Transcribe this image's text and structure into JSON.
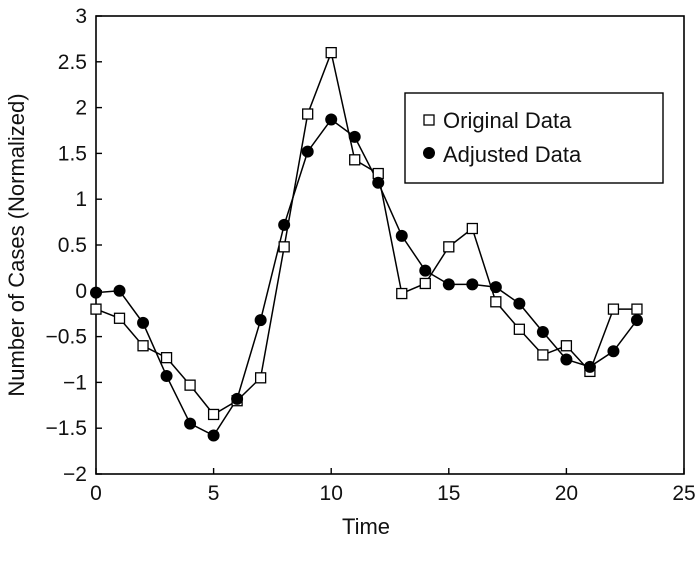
{
  "chart_data": {
    "type": "line",
    "xlabel": "Time",
    "ylabel": "Number of Cases (Normalized)",
    "xlim": [
      0,
      25
    ],
    "ylim": [
      -2,
      3
    ],
    "xticks": [
      0,
      5,
      10,
      15,
      20,
      25
    ],
    "yticks": [
      -2,
      -1.5,
      -1,
      -0.5,
      0,
      0.5,
      1,
      1.5,
      2,
      2.5,
      3
    ],
    "xtick_labels": [
      "0",
      "5",
      "10",
      "15",
      "20",
      "25"
    ],
    "ytick_labels": [
      "−2",
      "−1.5",
      "−1",
      "−0.5",
      "0",
      "0.5",
      "1",
      "1.5",
      "2",
      "2.5",
      "3"
    ],
    "grid": false,
    "legend_position": "top-right",
    "series": [
      {
        "name": "Original Data",
        "marker": "open-square",
        "color": "#000000",
        "x": [
          0,
          1,
          2,
          3,
          4,
          5,
          6,
          7,
          8,
          9,
          10,
          11,
          12,
          13,
          14,
          15,
          16,
          17,
          18,
          19,
          20,
          21,
          22,
          23
        ],
        "y": [
          -0.2,
          -0.3,
          -0.6,
          -0.73,
          -1.03,
          -1.35,
          -1.2,
          -0.95,
          0.48,
          1.93,
          2.6,
          1.43,
          1.28,
          -0.03,
          0.08,
          0.48,
          0.68,
          -0.12,
          -0.42,
          -0.7,
          -0.6,
          -0.88,
          -0.2,
          -0.2
        ]
      },
      {
        "name": "Adjusted Data",
        "marker": "filled-circle",
        "color": "#000000",
        "x": [
          0,
          1,
          2,
          3,
          4,
          5,
          6,
          7,
          8,
          9,
          10,
          11,
          12,
          13,
          14,
          15,
          16,
          17,
          18,
          19,
          20,
          21,
          22,
          23
        ],
        "y": [
          -0.02,
          0.0,
          -0.35,
          -0.93,
          -1.45,
          -1.58,
          -1.18,
          -0.32,
          0.72,
          1.52,
          1.87,
          1.68,
          1.18,
          0.6,
          0.22,
          0.07,
          0.07,
          0.04,
          -0.14,
          -0.45,
          -0.75,
          -0.83,
          -0.66,
          -0.32
        ]
      }
    ]
  }
}
